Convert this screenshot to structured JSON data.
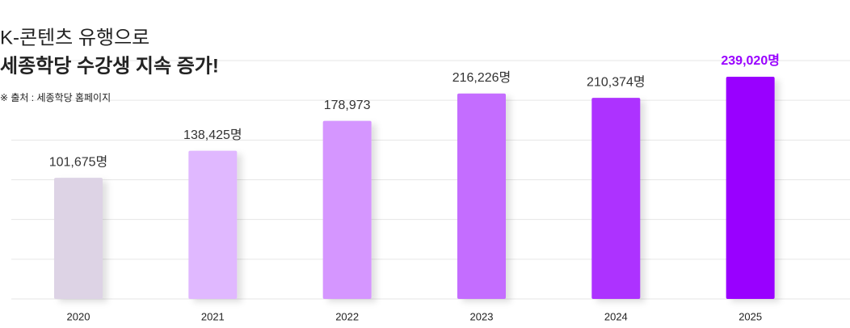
{
  "chart_data": {
    "type": "bar",
    "title": "K-콘텐츠 유행으로",
    "subtitle": "세종학당 수강생 지속 증가!",
    "source": "※ 출처 : 세종학당 홈페이지",
    "categories": [
      "2020",
      "2021",
      "2022",
      "2023",
      "2024",
      "2025"
    ],
    "values": [
      101675,
      138425,
      178973,
      216226,
      210374,
      239020
    ],
    "value_labels": [
      "101,675명",
      "138,425명",
      "178,973",
      "216,226명",
      "210,374명",
      "239,020명"
    ],
    "colors": [
      "#ddd3e5",
      "#e0b8ff",
      "#d596ff",
      "#c46dff",
      "#ad33ff",
      "#9900ff"
    ],
    "value_label_colors": [
      "#333333",
      "#333333",
      "#333333",
      "#333333",
      "#333333",
      "#9900ff"
    ],
    "ylim": [
      -63000,
      261000
    ],
    "yticks": [
      -63000,
      -9000,
      45000,
      99000,
      153000,
      207000,
      261000
    ],
    "grid": true
  }
}
